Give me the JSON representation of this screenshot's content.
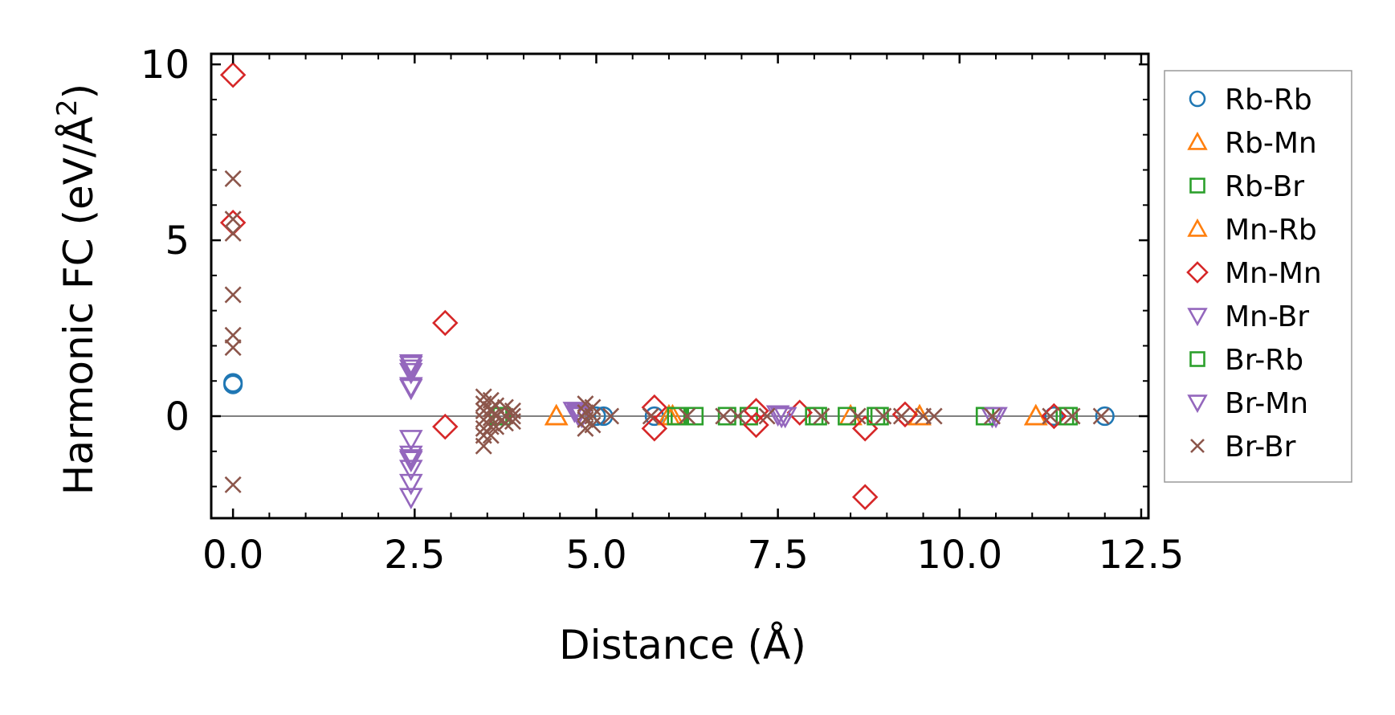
{
  "chart_data": {
    "type": "scatter",
    "title": "",
    "xlabel": "Distance (Å)",
    "ylabel_main": "Harmonic FC (eV/Å",
    "ylabel_sup": "2",
    "ylabel_close": ")",
    "xlim": [
      -0.3,
      12.6
    ],
    "ylim": [
      -2.9,
      10.3
    ],
    "xticks": [
      0.0,
      2.5,
      5.0,
      7.5,
      10.0,
      12.5
    ],
    "xtick_labels": [
      "0.0",
      "2.5",
      "5.0",
      "7.5",
      "10.0",
      "12.5"
    ],
    "yticks": [
      0,
      5,
      10
    ],
    "ytick_labels": [
      "0",
      "5",
      "10"
    ],
    "reference_line": 0,
    "legend_position": "right, outside",
    "series": [
      {
        "name": "Rb-Rb",
        "marker": "circle",
        "color": "#1f77b4",
        "points": [
          [
            0.0,
            0.9
          ],
          [
            0.0,
            0.95
          ],
          [
            5.0,
            0.0
          ],
          [
            5.1,
            0.0
          ],
          [
            5.8,
            0.0
          ],
          [
            11.3,
            0.0
          ],
          [
            12.0,
            0.0
          ]
        ]
      },
      {
        "name": "Rb-Mn",
        "marker": "triangle-up",
        "color": "#ff7f0e",
        "points": [
          [
            4.45,
            0.0
          ],
          [
            6.05,
            0.0
          ],
          [
            8.5,
            0.0
          ],
          [
            9.45,
            0.0
          ],
          [
            11.05,
            0.0
          ]
        ]
      },
      {
        "name": "Rb-Br",
        "marker": "square",
        "color": "#2ca02c",
        "points": [
          [
            3.65,
            0.0
          ],
          [
            3.7,
            0.0
          ],
          [
            6.15,
            0.0
          ],
          [
            6.35,
            0.0
          ],
          [
            6.8,
            0.0
          ],
          [
            7.1,
            0.0
          ],
          [
            8.05,
            0.0
          ],
          [
            8.45,
            0.0
          ],
          [
            8.9,
            0.0
          ],
          [
            10.35,
            0.0
          ],
          [
            11.45,
            0.0
          ]
        ]
      },
      {
        "name": "Mn-Rb",
        "marker": "triangle-up",
        "color": "#ff7f0e",
        "points": [
          [
            4.45,
            0.0
          ],
          [
            6.0,
            0.0
          ],
          [
            9.45,
            0.0
          ],
          [
            11.05,
            0.0
          ]
        ]
      },
      {
        "name": "Mn-Mn",
        "marker": "diamond",
        "color": "#d62728",
        "points": [
          [
            0.0,
            9.7
          ],
          [
            0.0,
            5.5
          ],
          [
            2.92,
            2.65
          ],
          [
            2.92,
            -0.3
          ],
          [
            5.8,
            0.25
          ],
          [
            5.8,
            -0.35
          ],
          [
            7.2,
            0.15
          ],
          [
            7.2,
            -0.25
          ],
          [
            7.8,
            0.1
          ],
          [
            8.7,
            -2.3
          ],
          [
            8.7,
            -0.35
          ],
          [
            9.25,
            0.05
          ],
          [
            11.3,
            0.0
          ]
        ]
      },
      {
        "name": "Mn-Br",
        "marker": "triangle-down",
        "color": "#9467bd",
        "points": [
          [
            2.45,
            1.5
          ],
          [
            2.45,
            1.35
          ],
          [
            2.45,
            1.25
          ],
          [
            2.45,
            0.8
          ],
          [
            2.45,
            -0.65
          ],
          [
            2.45,
            -1.1
          ],
          [
            2.45,
            -1.25
          ],
          [
            2.45,
            -1.5
          ],
          [
            2.45,
            -1.9
          ],
          [
            2.45,
            -2.3
          ],
          [
            4.7,
            0.15
          ],
          [
            4.75,
            0.05
          ],
          [
            4.8,
            0.0
          ],
          [
            7.5,
            0.05
          ],
          [
            7.6,
            0.0
          ],
          [
            10.45,
            0.0
          ]
        ]
      },
      {
        "name": "Br-Rb",
        "marker": "square",
        "color": "#2ca02c",
        "points": [
          [
            3.65,
            0.0
          ],
          [
            6.1,
            0.0
          ],
          [
            8.0,
            0.0
          ],
          [
            8.85,
            0.0
          ],
          [
            10.35,
            0.0
          ],
          [
            11.5,
            0.0
          ]
        ]
      },
      {
        "name": "Br-Mn",
        "marker": "triangle-down",
        "color": "#9467bd",
        "points": [
          [
            2.45,
            1.45
          ],
          [
            2.45,
            0.85
          ],
          [
            2.45,
            -1.2
          ],
          [
            4.75,
            0.1
          ],
          [
            7.55,
            0.0
          ],
          [
            10.5,
            0.0
          ]
        ]
      },
      {
        "name": "Br-Br",
        "marker": "x",
        "color": "#8c564b",
        "points": [
          [
            0.0,
            6.75
          ],
          [
            0.0,
            5.6
          ],
          [
            0.0,
            5.2
          ],
          [
            0.0,
            3.45
          ],
          [
            0.0,
            2.3
          ],
          [
            0.0,
            1.95
          ],
          [
            0.0,
            -1.95
          ],
          [
            3.45,
            0.55
          ],
          [
            3.45,
            0.35
          ],
          [
            3.45,
            0.15
          ],
          [
            3.45,
            -0.1
          ],
          [
            3.45,
            -0.35
          ],
          [
            3.45,
            -0.55
          ],
          [
            3.45,
            -0.85
          ],
          [
            3.55,
            0.45
          ],
          [
            3.55,
            0.2
          ],
          [
            3.55,
            -0.05
          ],
          [
            3.55,
            -0.3
          ],
          [
            3.55,
            -0.55
          ],
          [
            3.62,
            0.3
          ],
          [
            3.62,
            0.0
          ],
          [
            3.62,
            -0.3
          ],
          [
            3.75,
            0.25
          ],
          [
            3.75,
            0.0
          ],
          [
            3.75,
            -0.2
          ],
          [
            3.85,
            0.15
          ],
          [
            3.85,
            0.0
          ],
          [
            3.85,
            -0.15
          ],
          [
            4.85,
            0.35
          ],
          [
            4.85,
            0.1
          ],
          [
            4.85,
            -0.1
          ],
          [
            4.85,
            -0.35
          ],
          [
            4.95,
            0.25
          ],
          [
            4.95,
            0.0
          ],
          [
            4.95,
            -0.25
          ],
          [
            5.2,
            0.0
          ],
          [
            5.75,
            0.0
          ],
          [
            6.25,
            0.0
          ],
          [
            6.75,
            0.0
          ],
          [
            6.95,
            0.0
          ],
          [
            7.35,
            0.0
          ],
          [
            8.1,
            0.0
          ],
          [
            8.6,
            0.0
          ],
          [
            8.95,
            0.0
          ],
          [
            9.2,
            0.0
          ],
          [
            9.5,
            0.0
          ],
          [
            9.65,
            0.0
          ],
          [
            10.45,
            0.0
          ],
          [
            11.25,
            0.0
          ],
          [
            11.55,
            0.0
          ],
          [
            11.95,
            0.0
          ]
        ]
      }
    ]
  }
}
